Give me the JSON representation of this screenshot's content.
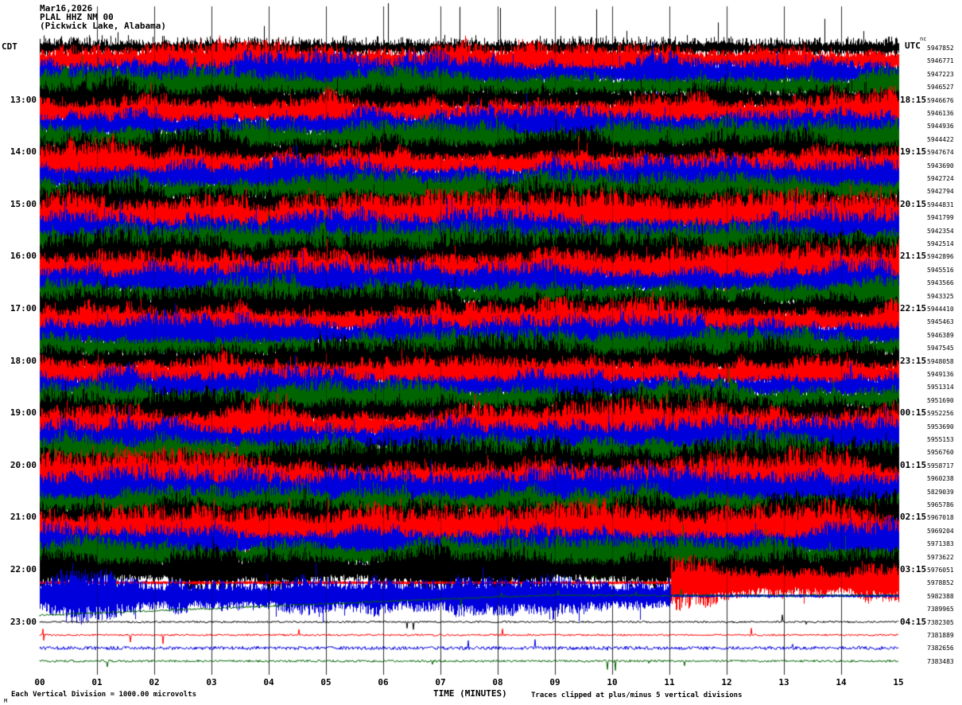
{
  "header": {
    "date": "Mar16,2026",
    "station": "PLAL HHZ NM 00",
    "location": "(Pickwick Lake, Alabama)",
    "left_timezone": "CDT",
    "right_timezone": "UTC",
    "right_top_note": "nc"
  },
  "footer": {
    "scale_note": "Each Vertical Division = 1000.00 microvolts",
    "x_axis_title": "TIME (MINUTES)",
    "clip_note": "Traces clipped at plus/minus 5 vertical divisions",
    "corner_mark": "M"
  },
  "chart_data": {
    "type": "line",
    "subtype": "helicorder-seismogram",
    "trace_minutes_per_line": 15,
    "x_axis": {
      "unit": "minutes",
      "range": [
        0,
        15
      ],
      "ticks": [
        "00",
        "01",
        "02",
        "03",
        "04",
        "05",
        "06",
        "07",
        "08",
        "09",
        "10",
        "11",
        "12",
        "13",
        "14",
        "15"
      ]
    },
    "colors_cycle": [
      "#000000",
      "#ff0000",
      "#0000dd",
      "#006400"
    ],
    "left_time_labels": [
      "13:00",
      "14:00",
      "15:00",
      "16:00",
      "17:00",
      "18:00",
      "19:00",
      "20:00",
      "21:00",
      "22:00",
      "23:00"
    ],
    "right_time_labels": [
      "18:15",
      "19:15",
      "20:15",
      "21:15",
      "22:15",
      "23:15",
      "00:15",
      "01:15",
      "02:15",
      "03:15",
      "04:15"
    ],
    "label_row_start": 4,
    "label_row_step": 4,
    "rows": [
      {
        "num": "5947852",
        "kind": "spiky",
        "amp": 9
      },
      {
        "num": "5946771",
        "kind": "busy",
        "amp": 20
      },
      {
        "num": "5947223",
        "kind": "busy",
        "amp": 22
      },
      {
        "num": "5946527",
        "kind": "busy",
        "amp": 20
      },
      {
        "num": "5946676",
        "kind": "busy",
        "amp": 23
      },
      {
        "num": "5946136",
        "kind": "busy",
        "amp": 24
      },
      {
        "num": "5944936",
        "kind": "busy",
        "amp": 20
      },
      {
        "num": "5944422",
        "kind": "busy",
        "amp": 21
      },
      {
        "num": "5947674",
        "kind": "busy",
        "amp": 23
      },
      {
        "num": "5943690",
        "kind": "busy",
        "amp": 25
      },
      {
        "num": "5942724",
        "kind": "busy",
        "amp": 22
      },
      {
        "num": "5942794",
        "kind": "busy",
        "amp": 20
      },
      {
        "num": "5944831",
        "kind": "busy",
        "amp": 24
      },
      {
        "num": "5941799",
        "kind": "busy",
        "amp": 26
      },
      {
        "num": "5942354",
        "kind": "busy",
        "amp": 22
      },
      {
        "num": "5942514",
        "kind": "busy",
        "amp": 20
      },
      {
        "num": "5942896",
        "kind": "busy",
        "amp": 24
      },
      {
        "num": "5945516",
        "kind": "busy",
        "amp": 26
      },
      {
        "num": "5943566",
        "kind": "busy",
        "amp": 22
      },
      {
        "num": "5943325",
        "kind": "busy",
        "amp": 20
      },
      {
        "num": "5944410",
        "kind": "busy",
        "amp": 22
      },
      {
        "num": "5945463",
        "kind": "busy",
        "amp": 24
      },
      {
        "num": "5946389",
        "kind": "busy",
        "amp": 22
      },
      {
        "num": "5947545",
        "kind": "busy",
        "amp": 20
      },
      {
        "num": "5948058",
        "kind": "busy",
        "amp": 24
      },
      {
        "num": "5949136",
        "kind": "busy",
        "amp": 25
      },
      {
        "num": "5951314",
        "kind": "busy",
        "amp": 22
      },
      {
        "num": "5951690",
        "kind": "busy",
        "amp": 20
      },
      {
        "num": "5952256",
        "kind": "busy",
        "amp": 24
      },
      {
        "num": "5953690",
        "kind": "busy",
        "amp": 26
      },
      {
        "num": "5955153",
        "kind": "busy",
        "amp": 22
      },
      {
        "num": "5956760",
        "kind": "busy",
        "amp": 20
      },
      {
        "num": "5958717",
        "kind": "busy",
        "amp": 26
      },
      {
        "num": "5960238",
        "kind": "busy",
        "amp": 28
      },
      {
        "num": "5829039",
        "kind": "busy",
        "amp": 24
      },
      {
        "num": "5965786",
        "kind": "busy",
        "amp": 20
      },
      {
        "num": "5967018",
        "kind": "busy",
        "amp": 26
      },
      {
        "num": "5969204",
        "kind": "busy",
        "amp": 28
      },
      {
        "num": "5971383",
        "kind": "busy",
        "amp": 24
      },
      {
        "num": "5973622",
        "kind": "busy",
        "amp": 20
      },
      {
        "num": "5976051",
        "kind": "busy",
        "amp": 24
      },
      {
        "num": "5978852",
        "kind": "halfR",
        "amp": 24,
        "knee": 0.735
      },
      {
        "num": "5982388",
        "kind": "halfL",
        "amp": 26,
        "knee": 0.735
      },
      {
        "num": "7389965",
        "kind": "drift",
        "amp": 1.3,
        "off1": 8,
        "off2": -17,
        "knee": 0.58
      },
      {
        "num": "7382305",
        "kind": "flat",
        "amp": 1.2
      },
      {
        "num": "7381889",
        "kind": "flat",
        "amp": 1.2
      },
      {
        "num": "7382656",
        "kind": "flat",
        "amp": 2.2
      },
      {
        "num": "7383483",
        "kind": "flat",
        "amp": 1.4
      }
    ]
  }
}
